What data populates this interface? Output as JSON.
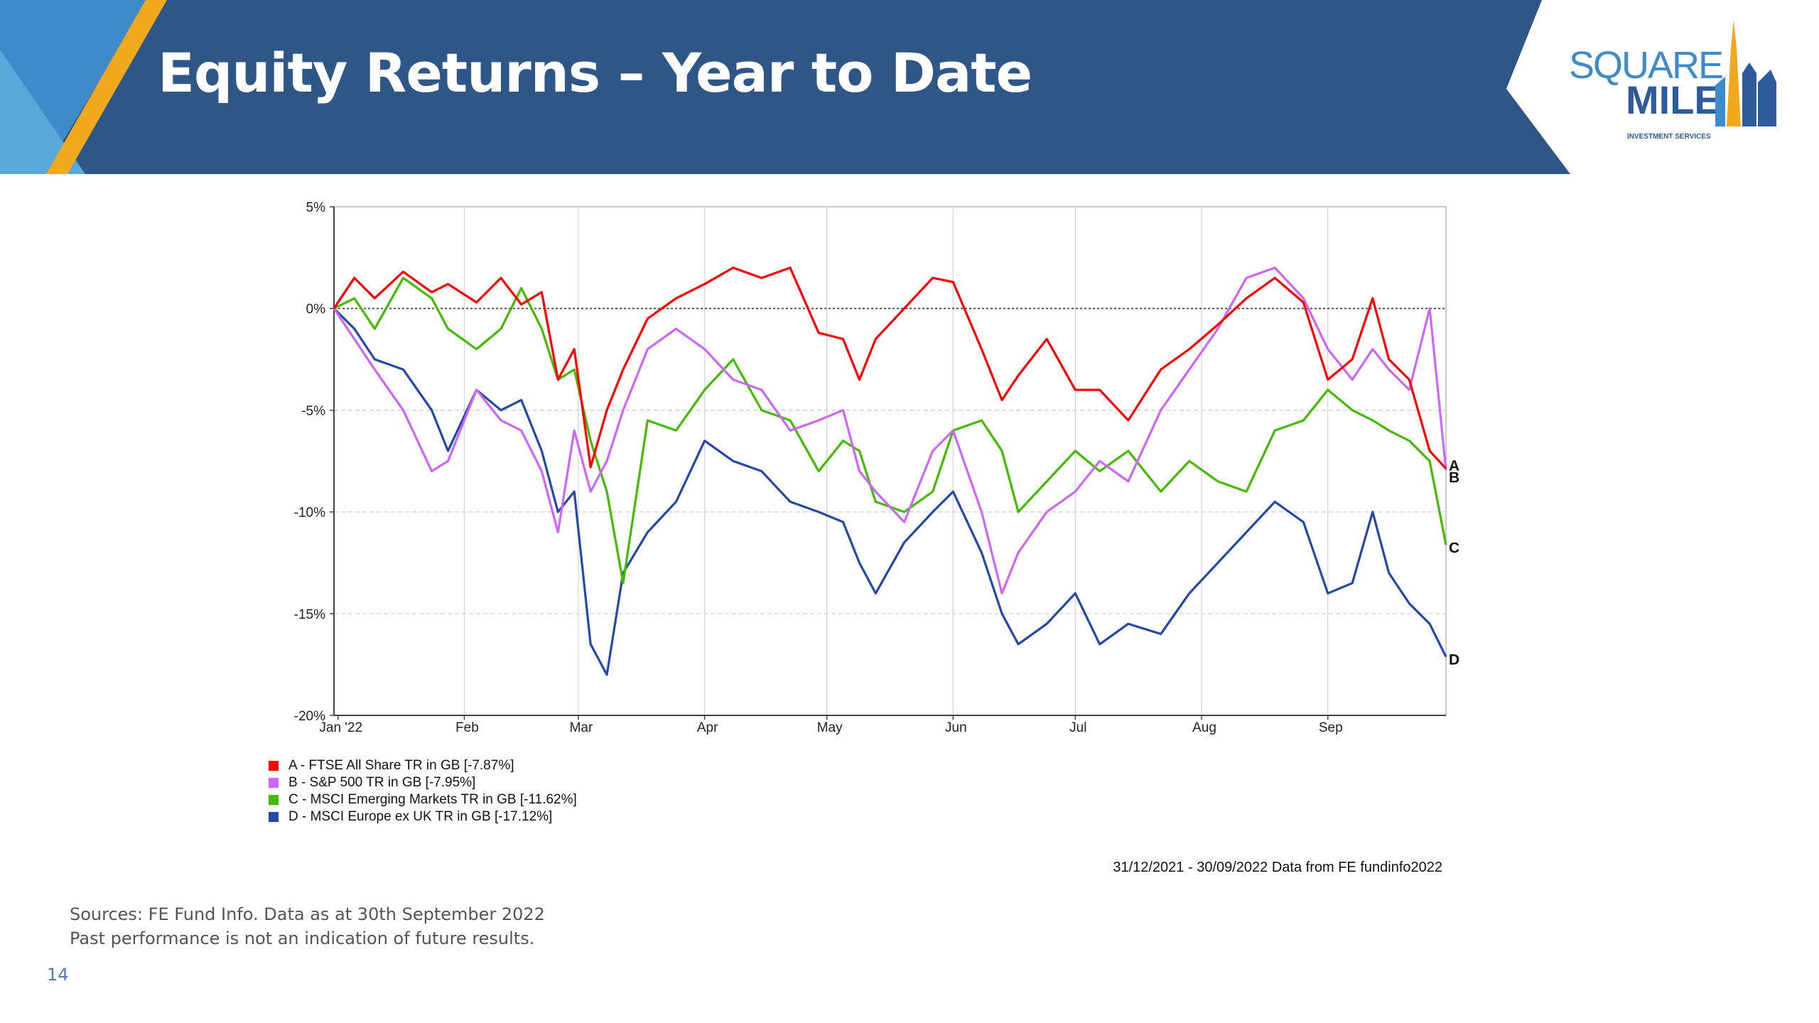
{
  "slide": {
    "title": "Equity Returns – Year to Date",
    "page_number": "14",
    "sources_line1": "Sources: FE Fund Info. Data as at 30th September 2022",
    "sources_line2": "Past performance is not an indication of future results."
  },
  "logo": {
    "word1": "SQUARE",
    "word2": "MILE",
    "tagline": "INVESTMENT SERVICES"
  },
  "colors": {
    "banner": "#2e5788",
    "accent": "#f0a81c",
    "logo_blue": "#2e5b9c"
  },
  "chart_data": {
    "type": "line",
    "xlim": [
      "31/12/2021",
      "30/09/2022"
    ],
    "ylim": [
      -20,
      5
    ],
    "y_ticks": [
      5,
      0,
      -5,
      -10,
      -15,
      -20
    ],
    "y_tick_labels": [
      "5%",
      "0%",
      "-5%",
      "-10%",
      "-15%",
      "-20%"
    ],
    "x_ticks": [
      "2022-01-01",
      "2022-02-01",
      "2022-03-01",
      "2022-04-01",
      "2022-05-01",
      "2022-06-01",
      "2022-07-01",
      "2022-08-01",
      "2022-09-01"
    ],
    "x_tick_labels": [
      "Jan '22",
      "Feb",
      "Mar",
      "Apr",
      "May",
      "Jun",
      "Jul",
      "Aug",
      "Sep"
    ],
    "grid": true,
    "reference_line": 0,
    "legend_position": "bottom-left",
    "note": "31/12/2021 - 30/09/2022 Data from FE fundinfo2022",
    "series": [
      {
        "key": "A",
        "name": "A - FTSE All Share TR in GB [-7.87%]",
        "color": "#ff0000",
        "x": [
          "2021-12-31",
          "2022-01-05",
          "2022-01-10",
          "2022-01-17",
          "2022-01-24",
          "2022-01-28",
          "2022-02-04",
          "2022-02-10",
          "2022-02-15",
          "2022-02-20",
          "2022-02-24",
          "2022-02-28",
          "2022-03-04",
          "2022-03-08",
          "2022-03-12",
          "2022-03-18",
          "2022-03-25",
          "2022-04-01",
          "2022-04-08",
          "2022-04-15",
          "2022-04-22",
          "2022-04-29",
          "2022-05-05",
          "2022-05-09",
          "2022-05-13",
          "2022-05-20",
          "2022-05-27",
          "2022-06-01",
          "2022-06-08",
          "2022-06-13",
          "2022-06-17",
          "2022-06-24",
          "2022-07-01",
          "2022-07-07",
          "2022-07-14",
          "2022-07-22",
          "2022-07-29",
          "2022-08-05",
          "2022-08-12",
          "2022-08-19",
          "2022-08-26",
          "2022-09-01",
          "2022-09-07",
          "2022-09-12",
          "2022-09-16",
          "2022-09-21",
          "2022-09-26",
          "2022-09-30"
        ],
        "y": [
          0,
          1.5,
          0.5,
          1.8,
          0.8,
          1.2,
          0.3,
          1.5,
          0.2,
          0.8,
          -3.5,
          -2,
          -7.8,
          -5,
          -3,
          -0.5,
          0.5,
          1.2,
          2,
          1.5,
          2,
          -1.2,
          -1.5,
          -3.5,
          -1.5,
          0,
          1.5,
          1.3,
          -2,
          -4.5,
          -3.3,
          -1.5,
          -4,
          -4,
          -5.5,
          -3,
          -2,
          -0.8,
          0.5,
          1.5,
          0.3,
          -3.5,
          -2.5,
          0.5,
          -2.5,
          -3.5,
          -7,
          -7.87
        ]
      },
      {
        "key": "B",
        "name": "B - S&P 500 TR in GB [-7.95%]",
        "color": "#cc66ff",
        "x": [
          "2021-12-31",
          "2022-01-05",
          "2022-01-10",
          "2022-01-17",
          "2022-01-24",
          "2022-01-28",
          "2022-02-04",
          "2022-02-10",
          "2022-02-15",
          "2022-02-20",
          "2022-02-24",
          "2022-02-28",
          "2022-03-04",
          "2022-03-08",
          "2022-03-12",
          "2022-03-18",
          "2022-03-25",
          "2022-04-01",
          "2022-04-08",
          "2022-04-15",
          "2022-04-22",
          "2022-04-29",
          "2022-05-05",
          "2022-05-09",
          "2022-05-13",
          "2022-05-20",
          "2022-05-27",
          "2022-06-01",
          "2022-06-08",
          "2022-06-13",
          "2022-06-17",
          "2022-06-24",
          "2022-07-01",
          "2022-07-07",
          "2022-07-14",
          "2022-07-22",
          "2022-07-29",
          "2022-08-05",
          "2022-08-12",
          "2022-08-19",
          "2022-08-26",
          "2022-09-01",
          "2022-09-07",
          "2022-09-12",
          "2022-09-16",
          "2022-09-21",
          "2022-09-26",
          "2022-09-30"
        ],
        "y": [
          0,
          -1.5,
          -3,
          -5,
          -8,
          -7.5,
          -4,
          -5.5,
          -6,
          -8,
          -11,
          -6,
          -9,
          -7.5,
          -5,
          -2,
          -1,
          -2,
          -3.5,
          -4,
          -6,
          -5.5,
          -5,
          -8,
          -9,
          -10.5,
          -7,
          -6,
          -10,
          -14,
          -12,
          -10,
          -9,
          -7.5,
          -8.5,
          -5,
          -3,
          -1,
          1.5,
          2,
          0.5,
          -2,
          -3.5,
          -2,
          -3,
          -4,
          0,
          -7.95
        ]
      },
      {
        "key": "C",
        "name": "C - MSCI Emerging Markets TR in GB [-11.62%]",
        "color": "#44bb00",
        "x": [
          "2021-12-31",
          "2022-01-05",
          "2022-01-10",
          "2022-01-17",
          "2022-01-24",
          "2022-01-28",
          "2022-02-04",
          "2022-02-10",
          "2022-02-15",
          "2022-02-20",
          "2022-02-24",
          "2022-02-28",
          "2022-03-04",
          "2022-03-08",
          "2022-03-12",
          "2022-03-18",
          "2022-03-25",
          "2022-04-01",
          "2022-04-08",
          "2022-04-15",
          "2022-04-22",
          "2022-04-29",
          "2022-05-05",
          "2022-05-09",
          "2022-05-13",
          "2022-05-20",
          "2022-05-27",
          "2022-06-01",
          "2022-06-08",
          "2022-06-13",
          "2022-06-17",
          "2022-06-24",
          "2022-07-01",
          "2022-07-07",
          "2022-07-14",
          "2022-07-22",
          "2022-07-29",
          "2022-08-05",
          "2022-08-12",
          "2022-08-19",
          "2022-08-26",
          "2022-09-01",
          "2022-09-07",
          "2022-09-12",
          "2022-09-16",
          "2022-09-21",
          "2022-09-26",
          "2022-09-30"
        ],
        "y": [
          0,
          0.5,
          -1,
          1.5,
          0.5,
          -1,
          -2,
          -1,
          1,
          -1,
          -3.5,
          -3,
          -6.5,
          -9,
          -13.5,
          -5.5,
          -6,
          -4,
          -2.5,
          -5,
          -5.5,
          -8,
          -6.5,
          -7,
          -9.5,
          -10,
          -9,
          -6,
          -5.5,
          -7,
          -10,
          -8.5,
          -7,
          -8,
          -7,
          -9,
          -7.5,
          -8.5,
          -9,
          -6,
          -5.5,
          -4,
          -5,
          -5.5,
          -6,
          -6.5,
          -7.5,
          -11.62
        ]
      },
      {
        "key": "D",
        "name": "D - MSCI Europe ex UK TR in GB [-17.12%]",
        "color": "#2448a8",
        "x": [
          "2021-12-31",
          "2022-01-05",
          "2022-01-10",
          "2022-01-17",
          "2022-01-24",
          "2022-01-28",
          "2022-02-04",
          "2022-02-10",
          "2022-02-15",
          "2022-02-20",
          "2022-02-24",
          "2022-02-28",
          "2022-03-04",
          "2022-03-08",
          "2022-03-12",
          "2022-03-18",
          "2022-03-25",
          "2022-04-01",
          "2022-04-08",
          "2022-04-15",
          "2022-04-22",
          "2022-04-29",
          "2022-05-05",
          "2022-05-09",
          "2022-05-13",
          "2022-05-20",
          "2022-05-27",
          "2022-06-01",
          "2022-06-08",
          "2022-06-13",
          "2022-06-17",
          "2022-06-24",
          "2022-07-01",
          "2022-07-07",
          "2022-07-14",
          "2022-07-22",
          "2022-07-29",
          "2022-08-05",
          "2022-08-12",
          "2022-08-19",
          "2022-08-26",
          "2022-09-01",
          "2022-09-07",
          "2022-09-12",
          "2022-09-16",
          "2022-09-21",
          "2022-09-26",
          "2022-09-30"
        ],
        "y": [
          0,
          -1,
          -2.5,
          -3,
          -5,
          -7,
          -4,
          -5,
          -4.5,
          -7,
          -10,
          -9,
          -16.5,
          -18,
          -13,
          -11,
          -9.5,
          -6.5,
          -7.5,
          -8,
          -9.5,
          -10,
          -10.5,
          -12.5,
          -14,
          -11.5,
          -10,
          -9,
          -12,
          -15,
          -16.5,
          -15.5,
          -14,
          -16.5,
          -15.5,
          -16,
          -14,
          -12.5,
          -11,
          -9.5,
          -10.5,
          -14,
          -13.5,
          -10,
          -13,
          -14.5,
          -15.5,
          -17.12
        ]
      }
    ]
  }
}
